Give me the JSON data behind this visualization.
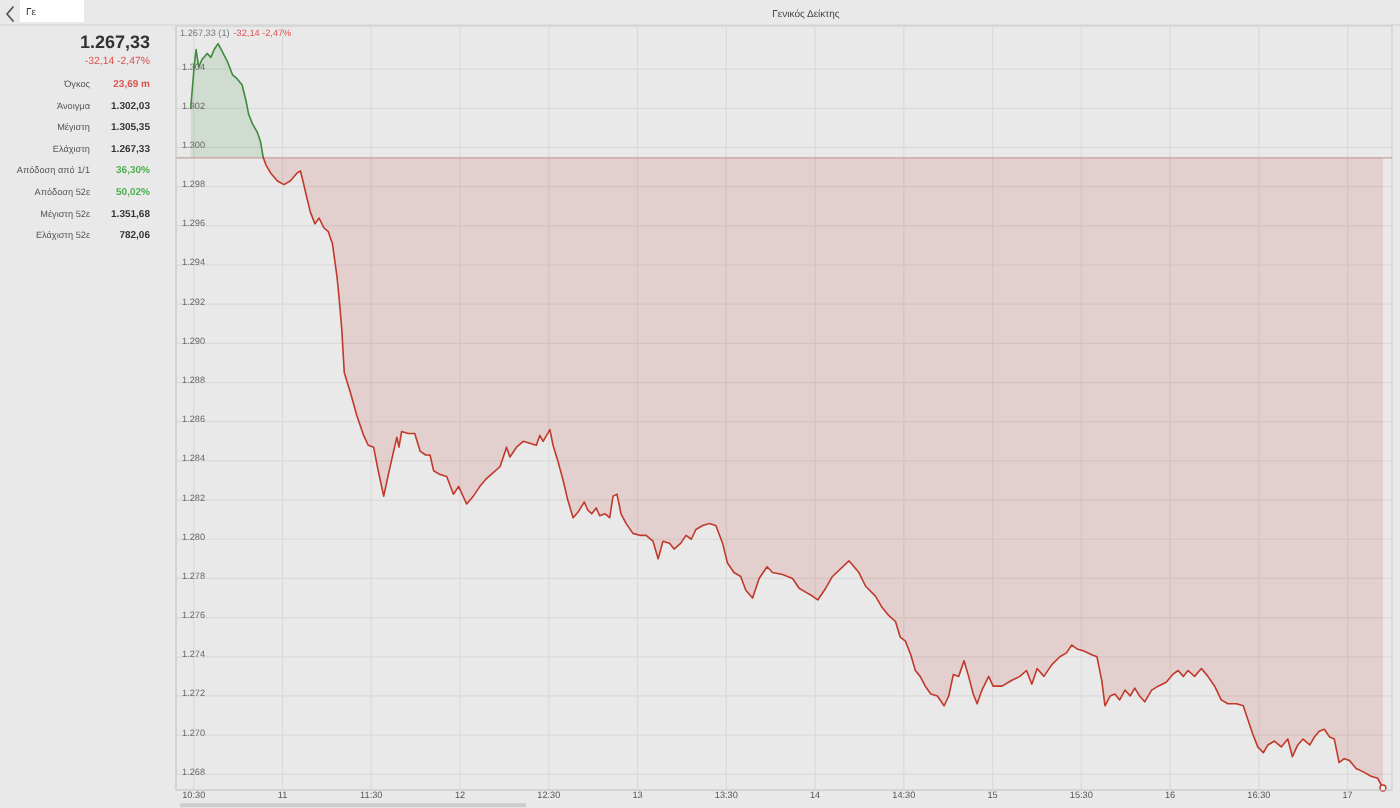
{
  "chart_data": [
    {
      "type": "other",
      "title": "1.267,33",
      "subtitle": "-32,14 -2,47%",
      "annotations": [
        "Γε"
      ],
      "categories": [
        "Όγκος",
        "Άνοιγμα",
        "Μέγιστη",
        "Ελάχιστη",
        "Απόδοση από 1/1",
        "Απόδοση 52ε",
        "Μέγιστη 52ε",
        "Ελάχιστη 52ε"
      ],
      "value_labels": [
        "23,69 m",
        "1.302,03",
        "1.305,35",
        "1.267,33",
        "36,30%",
        "50,02%",
        "1.351,68",
        "782,06"
      ],
      "colors": [
        "#d9534f",
        "#333333",
        "#333333",
        "#333333",
        "#4caf50",
        "#4caf50",
        "#333333",
        "#333333"
      ]
    },
    {
      "type": "line",
      "title": "Γενικός Δείκτης",
      "annotations": [
        "1.267,33 (1)",
        "-32,14 -2,47%"
      ],
      "xlim": [
        10.4,
        17.25
      ],
      "xticks": [
        {
          "value": 10.5,
          "label": "10:30"
        },
        11,
        {
          "value": 11.5,
          "label": "11:30"
        },
        12,
        {
          "value": 12.5,
          "label": "12:30"
        },
        13,
        {
          "value": 13.5,
          "label": "13:30"
        },
        14,
        {
          "value": 14.5,
          "label": "14:30"
        },
        15,
        {
          "value": 15.5,
          "label": "15:30"
        },
        16,
        {
          "value": 16.5,
          "label": "16:30"
        },
        17
      ],
      "ylim": [
        1267.2,
        1306.2
      ],
      "yticks": [
        {
          "value": 1268,
          "label": "1.268"
        },
        {
          "value": 1270,
          "label": "1.270"
        },
        {
          "value": 1272,
          "label": "1.272"
        },
        {
          "value": 1274,
          "label": "1.274"
        },
        {
          "value": 1276,
          "label": "1.276"
        },
        {
          "value": 1278,
          "label": "1.278"
        },
        {
          "value": 1280,
          "label": "1.280"
        },
        {
          "value": 1282,
          "label": "1.282"
        },
        {
          "value": 1284,
          "label": "1.284"
        },
        {
          "value": 1286,
          "label": "1.286"
        },
        {
          "value": 1288,
          "label": "1.288"
        },
        {
          "value": 1290,
          "label": "1.290"
        },
        {
          "value": 1292,
          "label": "1.292"
        },
        {
          "value": 1294,
          "label": "1.294"
        },
        {
          "value": 1296,
          "label": "1.296"
        },
        {
          "value": 1298,
          "label": "1.298"
        },
        {
          "value": 1300,
          "label": "1.300"
        },
        {
          "value": 1302,
          "label": "1.302"
        },
        {
          "value": 1304,
          "label": "1.304"
        }
      ],
      "grid": true,
      "ref_lines": [
        {
          "axis": "y",
          "value": 1299.47,
          "color": "#c4a0a0"
        }
      ],
      "series": [
        {
          "color": "#3d8b3d",
          "x": [
            10.483,
            10.502,
            10.513,
            10.528,
            10.547,
            10.576,
            10.596,
            10.615,
            10.637,
            10.66,
            10.689,
            10.719,
            10.745,
            10.772,
            10.794,
            10.809,
            10.831,
            10.857,
            10.876,
            10.891
          ],
          "values": [
            1302.0,
            1304.1,
            1305.0,
            1304.1,
            1304.5,
            1304.8,
            1304.6,
            1305.0,
            1305.3,
            1304.9,
            1304.4,
            1303.7,
            1303.5,
            1303.2,
            1302.4,
            1301.7,
            1301.2,
            1300.8,
            1300.3,
            1299.5
          ],
          "lower": [
            1299.47,
            1299.47,
            1299.47,
            1299.47,
            1299.47,
            1299.47,
            1299.47,
            1299.47,
            1299.47,
            1299.47,
            1299.47,
            1299.47,
            1299.47,
            1299.47,
            1299.47,
            1299.47,
            1299.47,
            1299.47,
            1299.47,
            1299.47
          ],
          "upper": [
            1302.0,
            1304.1,
            1305.0,
            1304.1,
            1304.5,
            1304.8,
            1304.6,
            1305.0,
            1305.3,
            1304.9,
            1304.4,
            1303.7,
            1303.5,
            1303.2,
            1302.4,
            1301.7,
            1301.2,
            1300.8,
            1300.3,
            1299.5
          ]
        },
        {
          "color": "#c0392b",
          "x": [
            10.891,
            10.907,
            10.933,
            10.97,
            11.008,
            11.045,
            11.082,
            11.101,
            11.112,
            11.138,
            11.157,
            11.183,
            11.206,
            11.233,
            11.258,
            11.281,
            11.307,
            11.318,
            11.334,
            11.348,
            11.382,
            11.419,
            11.457,
            11.483,
            11.513,
            11.539,
            11.57,
            11.596,
            11.626,
            11.644,
            11.656,
            11.671,
            11.708,
            11.745,
            11.775,
            11.806,
            11.831,
            11.851,
            11.888,
            11.925,
            11.963,
            11.992,
            12.037,
            12.075,
            12.112,
            12.149,
            12.187,
            12.225,
            12.244,
            12.262,
            12.281,
            12.318,
            12.356,
            12.393,
            12.43,
            12.449,
            12.468,
            12.506,
            12.524,
            12.551,
            12.581,
            12.607,
            12.637,
            12.666,
            12.7,
            12.719,
            12.742,
            12.767,
            12.787,
            12.817,
            12.843,
            12.862,
            12.884,
            12.907,
            12.936,
            12.974,
            13.011,
            13.048,
            13.087,
            13.116,
            13.143,
            13.18,
            13.206,
            13.244,
            13.273,
            13.303,
            13.329,
            13.367,
            13.404,
            13.441,
            13.479,
            13.506,
            13.543,
            13.581,
            13.61,
            13.648,
            13.685,
            13.73,
            13.76,
            13.817,
            13.873,
            13.91,
            13.947,
            13.985,
            14.015,
            14.06,
            14.098,
            14.191,
            14.247,
            14.285,
            14.34,
            14.379,
            14.416,
            14.453,
            14.48,
            14.509,
            14.539,
            14.565,
            14.592,
            14.621,
            14.652,
            14.689,
            14.727,
            14.753,
            14.779,
            14.809,
            14.839,
            14.865,
            14.891,
            14.913,
            14.94,
            14.978,
            15.003,
            15.053,
            15.109,
            15.154,
            15.191,
            15.221,
            15.251,
            15.289,
            15.334,
            15.379,
            15.416,
            15.446,
            15.476,
            15.514,
            15.559,
            15.588,
            15.615,
            15.633,
            15.663,
            15.689,
            15.716,
            15.746,
            15.775,
            15.801,
            15.828,
            15.857,
            15.896,
            15.933,
            15.978,
            16.015,
            16.045,
            16.075,
            16.101,
            16.138,
            16.176,
            16.213,
            16.251,
            16.288,
            16.326,
            16.374,
            16.412,
            16.438,
            16.464,
            16.494,
            16.525,
            16.551,
            16.588,
            16.626,
            16.663,
            16.689,
            16.719,
            16.749,
            16.787,
            16.813,
            16.84,
            16.869,
            16.899,
            16.925,
            16.952,
            16.981,
            17.011,
            17.048,
            17.094,
            17.132,
            17.169,
            17.199
          ],
          "values": [
            1299.5,
            1299.1,
            1298.7,
            1298.3,
            1298.1,
            1298.3,
            1298.7,
            1298.8,
            1298.4,
            1297.4,
            1296.7,
            1296.1,
            1296.4,
            1295.9,
            1295.7,
            1295.1,
            1293.4,
            1292.4,
            1290.7,
            1288.5,
            1287.5,
            1286.3,
            1285.3,
            1284.8,
            1284.7,
            1283.5,
            1282.2,
            1283.3,
            1284.5,
            1285.2,
            1284.7,
            1285.5,
            1285.4,
            1285.4,
            1284.5,
            1284.3,
            1284.3,
            1283.5,
            1283.3,
            1283.2,
            1282.3,
            1282.7,
            1281.8,
            1282.2,
            1282.7,
            1283.1,
            1283.4,
            1283.7,
            1284.2,
            1284.7,
            1284.2,
            1284.7,
            1285.0,
            1284.9,
            1284.8,
            1285.3,
            1285.0,
            1285.6,
            1284.8,
            1284.0,
            1283.0,
            1282.0,
            1281.1,
            1281.4,
            1281.9,
            1281.5,
            1281.3,
            1281.6,
            1281.2,
            1281.3,
            1281.1,
            1282.2,
            1282.3,
            1281.3,
            1280.8,
            1280.3,
            1280.2,
            1280.2,
            1279.9,
            1279.0,
            1279.9,
            1279.8,
            1279.5,
            1279.8,
            1280.2,
            1280.0,
            1280.5,
            1280.7,
            1280.8,
            1280.7,
            1279.8,
            1278.8,
            1278.3,
            1278.1,
            1277.4,
            1277.0,
            1278.0,
            1278.6,
            1278.3,
            1278.2,
            1278.0,
            1277.5,
            1277.3,
            1277.1,
            1276.9,
            1277.5,
            1278.1,
            1278.9,
            1278.3,
            1277.6,
            1277.1,
            1276.5,
            1276.1,
            1275.8,
            1275.0,
            1274.8,
            1274.1,
            1273.3,
            1273.0,
            1272.5,
            1272.1,
            1272.0,
            1271.5,
            1272.0,
            1273.1,
            1273.0,
            1273.8,
            1273.0,
            1272.1,
            1271.6,
            1272.3,
            1273.0,
            1272.5,
            1272.5,
            1272.8,
            1273.0,
            1273.3,
            1272.6,
            1273.4,
            1273.0,
            1273.6,
            1274.0,
            1274.2,
            1274.6,
            1274.4,
            1274.3,
            1274.1,
            1274.0,
            1272.8,
            1271.5,
            1272.0,
            1272.1,
            1271.8,
            1272.3,
            1272.0,
            1272.4,
            1272.0,
            1271.7,
            1272.3,
            1272.5,
            1272.7,
            1273.1,
            1273.3,
            1273.0,
            1273.3,
            1273.0,
            1273.4,
            1273.0,
            1272.5,
            1271.8,
            1271.6,
            1271.6,
            1271.5,
            1270.8,
            1270.1,
            1269.4,
            1269.1,
            1269.5,
            1269.7,
            1269.4,
            1269.8,
            1268.9,
            1269.5,
            1269.8,
            1269.5,
            1269.9,
            1270.2,
            1270.3,
            1269.9,
            1269.8,
            1268.6,
            1268.8,
            1268.7,
            1268.3,
            1268.1,
            1267.9,
            1267.8,
            1267.3
          ],
          "lower": [
            1299.5,
            1299.1,
            1298.7,
            1298.3,
            1298.1,
            1298.3,
            1298.7,
            1298.8,
            1298.4,
            1297.4,
            1296.7,
            1296.1,
            1296.4,
            1295.9,
            1295.7,
            1295.1,
            1293.4,
            1292.4,
            1290.7,
            1288.5,
            1287.5,
            1286.3,
            1285.3,
            1284.8,
            1284.7,
            1283.5,
            1282.2,
            1283.3,
            1284.5,
            1285.2,
            1284.7,
            1285.5,
            1285.4,
            1285.4,
            1284.5,
            1284.3,
            1284.3,
            1283.5,
            1283.3,
            1283.2,
            1282.3,
            1282.7,
            1281.8,
            1282.2,
            1282.7,
            1283.1,
            1283.4,
            1283.7,
            1284.2,
            1284.7,
            1284.2,
            1284.7,
            1285.0,
            1284.9,
            1284.8,
            1285.3,
            1285.0,
            1285.6,
            1284.8,
            1284.0,
            1283.0,
            1282.0,
            1281.1,
            1281.4,
            1281.9,
            1281.5,
            1281.3,
            1281.6,
            1281.2,
            1281.3,
            1281.1,
            1282.2,
            1282.3,
            1281.3,
            1280.8,
            1280.3,
            1280.2,
            1280.2,
            1279.9,
            1279.0,
            1279.9,
            1279.8,
            1279.5,
            1279.8,
            1280.2,
            1280.0,
            1280.5,
            1280.7,
            1280.8,
            1280.7,
            1279.8,
            1278.8,
            1278.3,
            1278.1,
            1277.4,
            1277.0,
            1278.0,
            1278.6,
            1278.3,
            1278.2,
            1278.0,
            1277.5,
            1277.3,
            1277.1,
            1276.9,
            1277.5,
            1278.1,
            1278.9,
            1278.3,
            1277.6,
            1277.1,
            1276.5,
            1276.1,
            1275.8,
            1275.0,
            1274.8,
            1274.1,
            1273.3,
            1273.0,
            1272.5,
            1272.1,
            1272.0,
            1271.5,
            1272.0,
            1273.1,
            1273.0,
            1273.8,
            1273.0,
            1272.1,
            1271.6,
            1272.3,
            1273.0,
            1272.5,
            1272.5,
            1272.8,
            1273.0,
            1273.3,
            1272.6,
            1273.4,
            1273.0,
            1273.6,
            1274.0,
            1274.2,
            1274.6,
            1274.4,
            1274.3,
            1274.1,
            1274.0,
            1272.8,
            1271.5,
            1272.0,
            1272.1,
            1271.8,
            1272.3,
            1272.0,
            1272.4,
            1272.0,
            1271.7,
            1272.3,
            1272.5,
            1272.7,
            1273.1,
            1273.3,
            1273.0,
            1273.3,
            1273.0,
            1273.4,
            1273.0,
            1272.5,
            1271.8,
            1271.6,
            1271.6,
            1271.5,
            1270.8,
            1270.1,
            1269.4,
            1269.1,
            1269.5,
            1269.7,
            1269.4,
            1269.8,
            1268.9,
            1269.5,
            1269.8,
            1269.5,
            1269.9,
            1270.2,
            1270.3,
            1269.9,
            1269.8,
            1268.6,
            1268.8,
            1268.7,
            1268.3,
            1268.1,
            1267.9,
            1267.8,
            1267.3
          ],
          "upper": [
            1299.47,
            1299.47,
            1299.47,
            1299.47,
            1299.47,
            1299.47,
            1299.47,
            1299.47,
            1299.47,
            1299.47,
            1299.47,
            1299.47,
            1299.47,
            1299.47,
            1299.47,
            1299.47,
            1299.47,
            1299.47,
            1299.47,
            1299.47,
            1299.47,
            1299.47,
            1299.47,
            1299.47,
            1299.47,
            1299.47,
            1299.47,
            1299.47,
            1299.47,
            1299.47,
            1299.47,
            1299.47,
            1299.47,
            1299.47,
            1299.47,
            1299.47,
            1299.47,
            1299.47,
            1299.47,
            1299.47,
            1299.47,
            1299.47,
            1299.47,
            1299.47,
            1299.47,
            1299.47,
            1299.47,
            1299.47,
            1299.47,
            1299.47,
            1299.47,
            1299.47,
            1299.47,
            1299.47,
            1299.47,
            1299.47,
            1299.47,
            1299.47,
            1299.47,
            1299.47,
            1299.47,
            1299.47,
            1299.47,
            1299.47,
            1299.47,
            1299.47,
            1299.47,
            1299.47,
            1299.47,
            1299.47,
            1299.47,
            1299.47,
            1299.47,
            1299.47,
            1299.47,
            1299.47,
            1299.47,
            1299.47,
            1299.47,
            1299.47,
            1299.47,
            1299.47,
            1299.47,
            1299.47,
            1299.47,
            1299.47,
            1299.47,
            1299.47,
            1299.47,
            1299.47,
            1299.47,
            1299.47,
            1299.47,
            1299.47,
            1299.47,
            1299.47,
            1299.47,
            1299.47,
            1299.47,
            1299.47,
            1299.47,
            1299.47,
            1299.47,
            1299.47,
            1299.47,
            1299.47,
            1299.47,
            1299.47,
            1299.47,
            1299.47,
            1299.47,
            1299.47,
            1299.47,
            1299.47,
            1299.47,
            1299.47,
            1299.47,
            1299.47,
            1299.47,
            1299.47,
            1299.47,
            1299.47,
            1299.47,
            1299.47,
            1299.47,
            1299.47,
            1299.47,
            1299.47,
            1299.47,
            1299.47,
            1299.47,
            1299.47,
            1299.47,
            1299.47,
            1299.47,
            1299.47,
            1299.47,
            1299.47,
            1299.47,
            1299.47,
            1299.47,
            1299.47,
            1299.47,
            1299.47,
            1299.47,
            1299.47,
            1299.47,
            1299.47,
            1299.47,
            1299.47,
            1299.47,
            1299.47,
            1299.47,
            1299.47,
            1299.47,
            1299.47,
            1299.47,
            1299.47,
            1299.47,
            1299.47,
            1299.47,
            1299.47,
            1299.47,
            1299.47,
            1299.47,
            1299.47,
            1299.47,
            1299.47,
            1299.47,
            1299.47,
            1299.47,
            1299.47,
            1299.47,
            1299.47,
            1299.47,
            1299.47,
            1299.47,
            1299.47,
            1299.47,
            1299.47,
            1299.47,
            1299.47,
            1299.47,
            1299.47,
            1299.47,
            1299.47,
            1299.47,
            1299.47,
            1299.47,
            1299.47,
            1299.47,
            1299.47,
            1299.47,
            1299.47,
            1299.47,
            1299.47,
            1299.47,
            1299.47
          ]
        },
        {
          "type": "scatter",
          "color": "#c0392b",
          "marker": "circle",
          "x": [
            17.199
          ],
          "values": [
            1267.3
          ]
        }
      ]
    }
  ]
}
